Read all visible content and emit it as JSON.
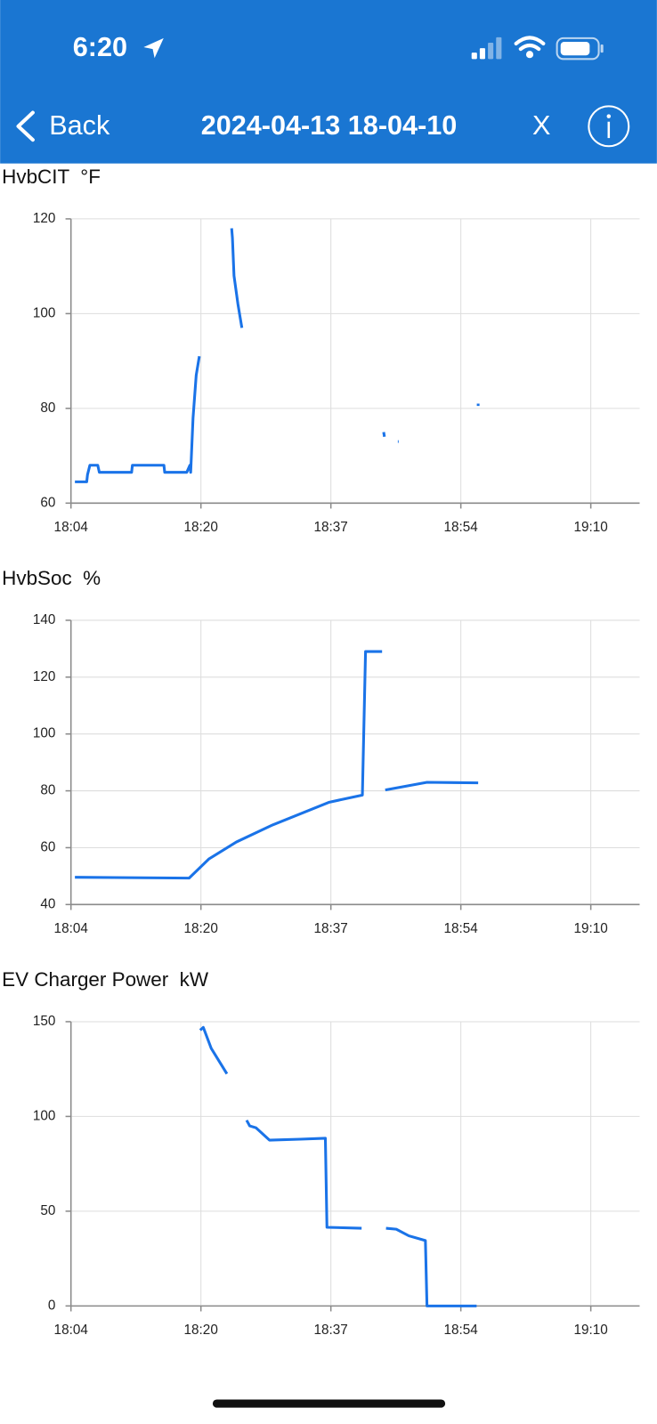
{
  "status_bar": {
    "time": "6:20"
  },
  "nav": {
    "back": "Back",
    "title": "2024-04-13 18-04-10",
    "close": "X"
  },
  "chart_data": [
    {
      "type": "line",
      "title": "HvbCIT  °F",
      "color": "#1a73e8",
      "grid": true,
      "xlim": [
        1084,
        1156.2
      ],
      "xticks": [
        {
          "value": 1084,
          "label": "18:04"
        },
        {
          "value": 1100.5,
          "label": "18:20"
        },
        {
          "value": 1117,
          "label": "18:37"
        },
        {
          "value": 1133.5,
          "label": "18:54"
        },
        {
          "value": 1150,
          "label": "19:10"
        }
      ],
      "ylim": [
        60,
        120
      ],
      "yticks": [
        60,
        80,
        100,
        120
      ],
      "x": [
        1084.5,
        1086,
        1086.1,
        1086.4,
        1087.4,
        1087.6,
        1091.7,
        1091.8,
        1095.8,
        1095.9,
        1098.7,
        1099.1,
        1099.2,
        1099.5,
        1099.9,
        1100.3,
        1102,
        1104.4,
        1104.5,
        1104.7,
        1105.2,
        1105.5,
        1105.7,
        1110,
        1123.7,
        1123.8,
        1124.5,
        1125.5,
        1125.6,
        1130,
        1135.7,
        1135.7
      ],
      "values": [
        64.5,
        64.5,
        66,
        68,
        68,
        66.5,
        66.5,
        68,
        68,
        66.5,
        66.5,
        68,
        66.5,
        78,
        87,
        91,
        null,
        118,
        116,
        108,
        102,
        99,
        97,
        null,
        75,
        74,
        null,
        73,
        73,
        null,
        80.5,
        81
      ]
    },
    {
      "type": "line",
      "title": "HvbSoc  %",
      "color": "#1a73e8",
      "grid": true,
      "xlim": [
        1084,
        1156.2
      ],
      "xticks": [
        {
          "value": 1084,
          "label": "18:04"
        },
        {
          "value": 1100.5,
          "label": "18:20"
        },
        {
          "value": 1117,
          "label": "18:37"
        },
        {
          "value": 1133.5,
          "label": "18:54"
        },
        {
          "value": 1150,
          "label": "19:10"
        }
      ],
      "ylim": [
        40,
        140
      ],
      "yticks": [
        40,
        60,
        80,
        100,
        120,
        140
      ],
      "x": [
        1084.5,
        1099,
        1101.5,
        1105,
        1109.6,
        1116.8,
        1121,
        1121.4,
        1123.5,
        1123.7,
        1123.9,
        1129.2,
        1135.7
      ],
      "values": [
        49.6,
        49.3,
        56,
        62,
        68,
        76,
        78.5,
        129,
        129,
        null,
        80.3,
        83,
        82.8
      ]
    },
    {
      "type": "line",
      "title": "EV Charger Power  kW",
      "color": "#1a73e8",
      "grid": true,
      "xlim": [
        1084,
        1156.2
      ],
      "xticks": [
        {
          "value": 1084,
          "label": "18:04"
        },
        {
          "value": 1100.5,
          "label": "18:20"
        },
        {
          "value": 1117,
          "label": "18:37"
        },
        {
          "value": 1133.5,
          "label": "18:54"
        },
        {
          "value": 1150,
          "label": "19:10"
        }
      ],
      "ylim": [
        0,
        150
      ],
      "yticks": [
        0,
        50,
        100,
        150
      ],
      "x": [
        1100.4,
        1100.8,
        1101.8,
        1103.8,
        1105,
        1106.3,
        1106.7,
        1107.5,
        1109.2,
        1113.1,
        1116.3,
        1116.5,
        1120.9,
        1122,
        1124,
        1125.3,
        1126.9,
        1129,
        1129.2,
        1135.5
      ],
      "values": [
        145.5,
        147,
        136,
        122.5,
        null,
        98,
        95,
        94,
        87.5,
        88,
        88.5,
        41.5,
        41,
        null,
        41,
        40.5,
        37,
        34.5,
        0,
        0
      ]
    }
  ]
}
